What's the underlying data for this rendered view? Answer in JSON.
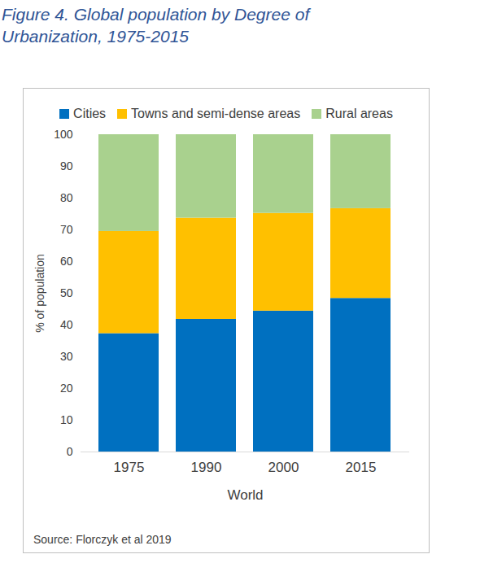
{
  "chart_data": {
    "type": "bar",
    "title": "Figure 4. Global population by Degree of Urbanization, 1975-2015",
    "categories": [
      "1975",
      "1990",
      "2000",
      "2015"
    ],
    "x_label": "World",
    "y_label": "% of population",
    "stacked": true,
    "grid": false,
    "legend": "top",
    "series": [
      {
        "name": "Cities",
        "color": "#0070C0",
        "values": [
          37.3,
          41.8,
          44.4,
          48.4
        ]
      },
      {
        "name": "Towns and semi-dense areas",
        "color": "#FFC000",
        "values": [
          32.2,
          31.9,
          30.8,
          28.3
        ]
      },
      {
        "name": "Rural areas",
        "color": "#A9D18E",
        "values": [
          30.5,
          26.3,
          24.8,
          23.3
        ]
      }
    ],
    "ylim": [
      0,
      100
    ],
    "yticks": [
      0,
      10,
      20,
      30,
      40,
      50,
      60,
      70,
      80,
      90,
      100
    ],
    "source": "Source: Florczyk et al 2019"
  }
}
